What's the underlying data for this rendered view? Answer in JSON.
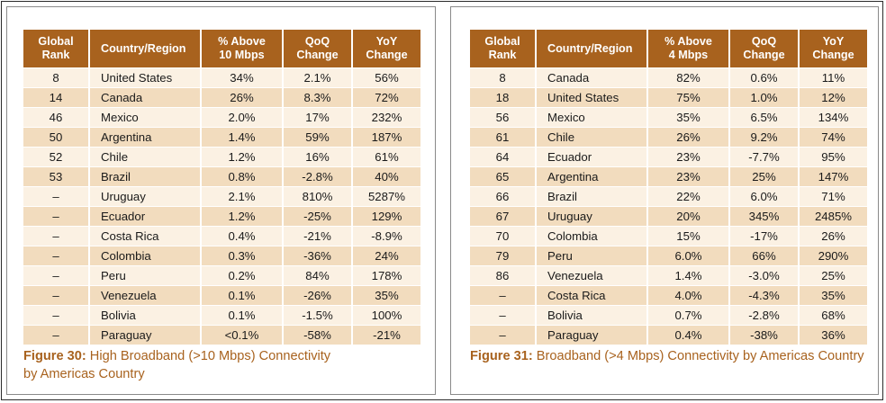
{
  "tables": [
    {
      "headers": [
        "Global\nRank",
        "Country/Region",
        "% Above\n10 Mbps",
        "QoQ\nChange",
        "YoY\nChange"
      ],
      "rows": [
        [
          "8",
          "United States",
          "34%",
          "2.1%",
          "56%"
        ],
        [
          "14",
          "Canada",
          "26%",
          "8.3%",
          "72%"
        ],
        [
          "46",
          "Mexico",
          "2.0%",
          "17%",
          "232%"
        ],
        [
          "50",
          "Argentina",
          "1.4%",
          "59%",
          "187%"
        ],
        [
          "52",
          "Chile",
          "1.2%",
          "16%",
          "61%"
        ],
        [
          "53",
          "Brazil",
          "0.8%",
          "-2.8%",
          "40%"
        ],
        [
          "–",
          "Uruguay",
          "2.1%",
          "810%",
          "5287%"
        ],
        [
          "–",
          "Ecuador",
          "1.2%",
          "-25%",
          "129%"
        ],
        [
          "–",
          "Costa Rica",
          "0.4%",
          "-21%",
          "-8.9%"
        ],
        [
          "–",
          "Colombia",
          "0.3%",
          "-36%",
          "24%"
        ],
        [
          "–",
          "Peru",
          "0.2%",
          "84%",
          "178%"
        ],
        [
          "–",
          "Venezuela",
          "0.1%",
          "-26%",
          "35%"
        ],
        [
          "–",
          "Bolivia",
          "0.1%",
          "-1.5%",
          "100%"
        ],
        [
          "–",
          "Paraguay",
          "<0.1%",
          "-58%",
          "-21%"
        ]
      ],
      "caption_num": "Figure 30:",
      "caption_line1": " High Broadband (>10 Mbps) Connectivity",
      "caption_line2": "by Americas Country"
    },
    {
      "headers": [
        "Global\nRank",
        "Country/Region",
        "% Above\n4 Mbps",
        "QoQ\nChange",
        "YoY\nChange"
      ],
      "rows": [
        [
          "8",
          "Canada",
          "82%",
          "0.6%",
          "11%"
        ],
        [
          "18",
          "United States",
          "75%",
          "1.0%",
          "12%"
        ],
        [
          "56",
          "Mexico",
          "35%",
          "6.5%",
          "134%"
        ],
        [
          "61",
          "Chile",
          "26%",
          "9.2%",
          "74%"
        ],
        [
          "64",
          "Ecuador",
          "23%",
          "-7.7%",
          "95%"
        ],
        [
          "65",
          "Argentina",
          "23%",
          "25%",
          "147%"
        ],
        [
          "66",
          "Brazil",
          "22%",
          "6.0%",
          "71%"
        ],
        [
          "67",
          "Uruguay",
          "20%",
          "345%",
          "2485%"
        ],
        [
          "70",
          "Colombia",
          "15%",
          "-17%",
          "26%"
        ],
        [
          "79",
          "Peru",
          "6.0%",
          "66%",
          "290%"
        ],
        [
          "86",
          "Venezuela",
          "1.4%",
          "-3.0%",
          "25%"
        ],
        [
          "–",
          "Costa Rica",
          "4.0%",
          "-4.3%",
          "35%"
        ],
        [
          "–",
          "Bolivia",
          "0.7%",
          "-2.8%",
          "68%"
        ],
        [
          "–",
          "Paraguay",
          "0.4%",
          "-38%",
          "36%"
        ]
      ],
      "caption_num": "Figure 31:",
      "caption_line1": " Broadband (>4 Mbps) Connectivity by Americas Country",
      "caption_line2": ""
    }
  ],
  "colors": {
    "header_bg": "#a8621e",
    "row_light": "#fbf1e3",
    "row_dark": "#f2dcbe",
    "caption_accent": "#a8621e"
  }
}
